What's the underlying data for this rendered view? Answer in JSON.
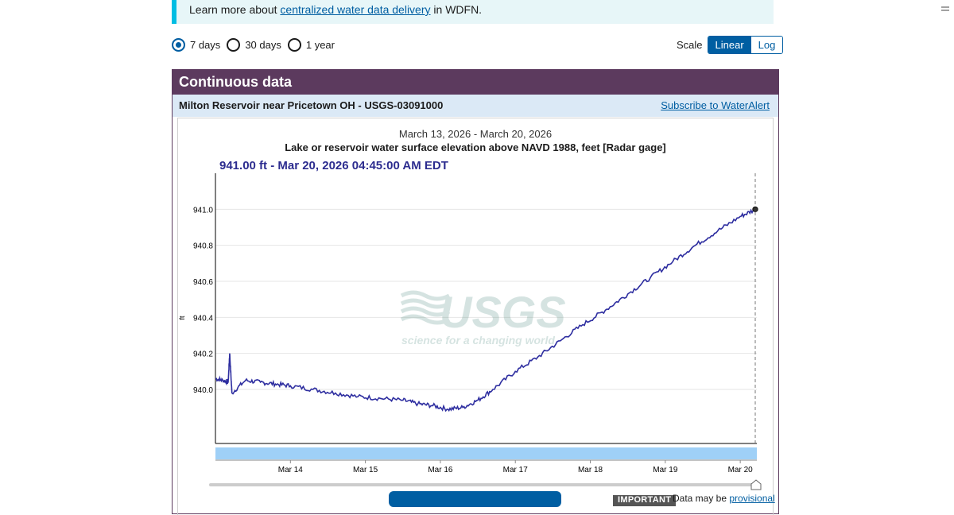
{
  "notice": {
    "prefix": "Learn more about ",
    "link": "centralized water data delivery",
    "suffix": " in WDFN."
  },
  "period_options": [
    {
      "label": "7 days",
      "checked": true
    },
    {
      "label": "30 days",
      "checked": false
    },
    {
      "label": "1 year",
      "checked": false
    }
  ],
  "scale": {
    "label": "Scale",
    "linear": "Linear",
    "log": "Log",
    "selected": "Linear"
  },
  "panel": {
    "title": "Continuous data",
    "site_name": "Milton Reservoir near Pricetown OH - USGS-03091000",
    "subscribe": "Subscribe to WaterAlert"
  },
  "watermark": {
    "brand": "USGS",
    "tagline": "science for a changing world"
  },
  "notice_bottom": {
    "badge": "IMPORTANT",
    "text": "Data may be ",
    "link": "provisional"
  },
  "chart_data": {
    "type": "line",
    "title": "March 13, 2026 - March 20, 2026",
    "subtitle": "Lake or reservoir water surface elevation above NAVD 1988, feet [Radar gage]",
    "tooltip": "941.00 ft - Mar 20, 2026 04:45:00 AM EDT",
    "ylabel": "ft",
    "xlabel": "",
    "ylim": [
      939.7,
      941.2
    ],
    "xlim": [
      13.0,
      20.2
    ],
    "yticks": [
      940.0,
      940.2,
      940.4,
      940.6,
      940.8,
      941.0
    ],
    "ytick_labels": [
      "940.0",
      "940.2",
      "940.4",
      "940.6",
      "940.8",
      "941.0"
    ],
    "xticks": [
      14,
      15,
      16,
      17,
      18,
      19,
      20
    ],
    "xtick_labels": [
      "Mar 14",
      "Mar 15",
      "Mar 16",
      "Mar 17",
      "Mar 18",
      "Mar 19",
      "Mar 20"
    ],
    "grid": true,
    "series": [
      {
        "color": "#2e2ea0",
        "x": [
          13.0,
          13.1,
          13.17,
          13.19,
          13.22,
          13.4,
          13.6,
          13.8,
          14.0,
          14.3,
          14.6,
          14.9,
          15.2,
          15.5,
          15.7,
          15.9,
          16.1,
          16.3,
          16.5,
          16.7,
          17.0,
          17.3,
          17.6,
          17.9,
          18.2,
          18.5,
          18.8,
          19.1,
          19.4,
          19.7,
          20.0,
          20.2
        ],
        "y": [
          940.06,
          940.05,
          940.04,
          940.2,
          939.98,
          940.05,
          940.04,
          940.03,
          940.02,
          940.0,
          939.98,
          939.96,
          939.95,
          939.94,
          939.92,
          939.91,
          939.89,
          939.9,
          939.94,
          940.0,
          940.1,
          940.18,
          940.27,
          940.36,
          940.44,
          940.53,
          940.62,
          940.71,
          940.8,
          940.88,
          940.96,
          941.0
        ]
      }
    ],
    "last_point": {
      "x": 20.2,
      "y": 941.0
    }
  }
}
